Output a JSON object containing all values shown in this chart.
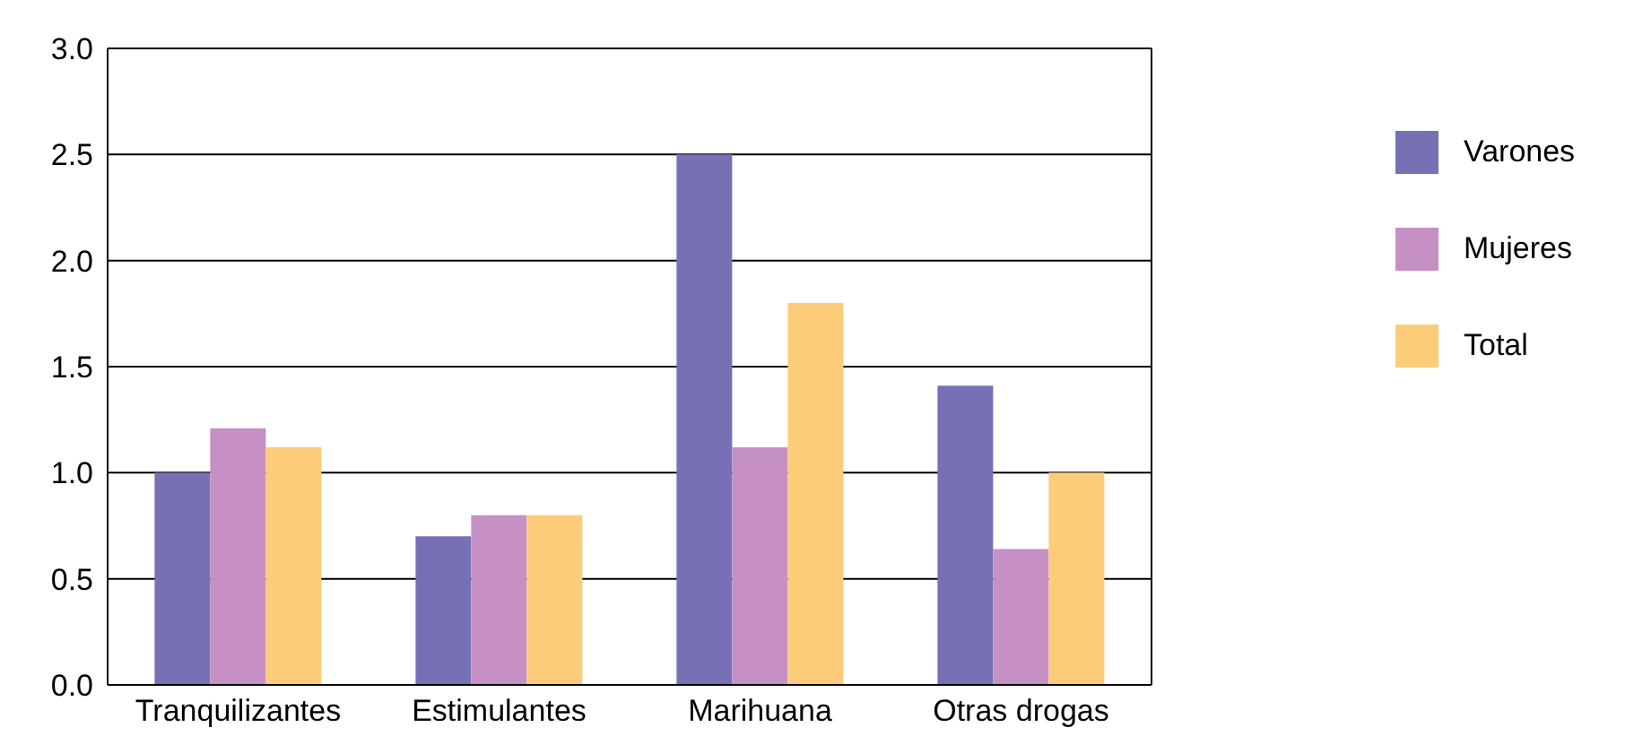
{
  "chart_data": {
    "type": "bar",
    "categories": [
      "Tranquilizantes",
      "Estimulantes",
      "Marihuana",
      "Otras drogas"
    ],
    "series": [
      {
        "name": "Varones",
        "color": "#7671b4",
        "values": [
          1.0,
          0.7,
          2.5,
          1.41
        ]
      },
      {
        "name": "Mujeres",
        "color": "#c690c4",
        "values": [
          1.21,
          0.8,
          1.12,
          0.64
        ]
      },
      {
        "name": "Total",
        "color": "#fdcc7a",
        "values": [
          1.12,
          0.8,
          1.8,
          1.0
        ]
      }
    ],
    "ylim": [
      0,
      3
    ],
    "yticks": [
      {
        "value": 0,
        "label": "0.0"
      },
      {
        "value": 0.5,
        "label": "0.5"
      },
      {
        "value": 1,
        "label": "1.0"
      },
      {
        "value": 1.5,
        "label": "1.5"
      },
      {
        "value": 2,
        "label": "2.0"
      },
      {
        "value": 2.5,
        "label": "2.5"
      },
      {
        "value": 3,
        "label": "3.0"
      }
    ],
    "grid": "y",
    "legend": "right"
  }
}
